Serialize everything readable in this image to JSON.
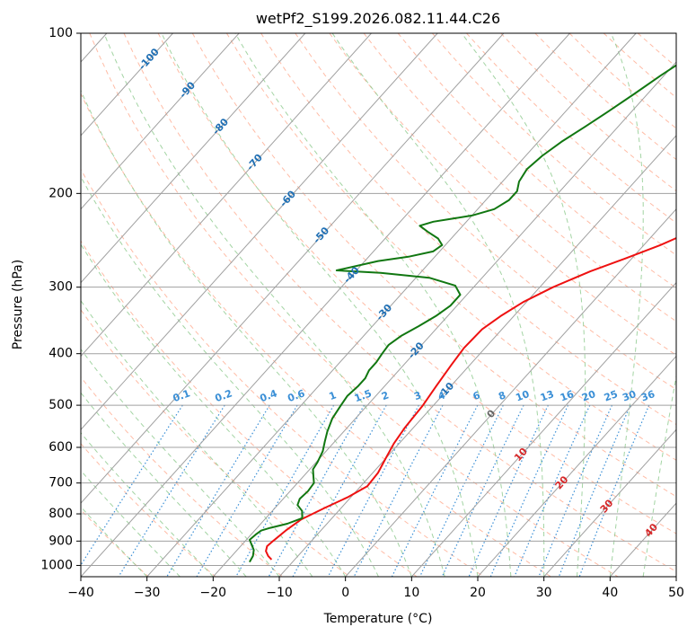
{
  "chart_data": {
    "type": "line",
    "title": "wetPf2_S199.2026.082.11.44.C26",
    "xlabel": "Temperature (°C)",
    "ylabel": "Pressure (hPa)",
    "xlim": [
      -40,
      50
    ],
    "ylim_hpa": [
      1050,
      100
    ],
    "y_scale": "log",
    "x_ticks": [
      -40,
      -30,
      -20,
      -10,
      0,
      10,
      20,
      30,
      40,
      50
    ],
    "x_tick_labels": [
      "−40",
      "−30",
      "−20",
      "−10",
      "0",
      "10",
      "20",
      "30",
      "40",
      "50"
    ],
    "y_ticks": [
      1000,
      900,
      800,
      700,
      600,
      500,
      400,
      300,
      200,
      100
    ],
    "y_tick_labels": [
      "1000",
      "900",
      "800",
      "700",
      "600",
      "500",
      "400",
      "300",
      "200",
      "100"
    ],
    "grid": true,
    "skew_note": "skewed temperature isotherms",
    "isotherm_labels": [
      {
        "t": -100,
        "label": "-100"
      },
      {
        "t": -90,
        "label": "-90"
      },
      {
        "t": -80,
        "label": "-80"
      },
      {
        "t": -70,
        "label": "-70"
      },
      {
        "t": -60,
        "label": "-60"
      },
      {
        "t": -50,
        "label": "-50"
      },
      {
        "t": -40,
        "label": "-40"
      },
      {
        "t": -30,
        "label": "-30"
      },
      {
        "t": -20,
        "label": "-20"
      },
      {
        "t": -10,
        "label": "-10"
      },
      {
        "t": 0,
        "label": "0"
      },
      {
        "t": 10,
        "label": "10"
      },
      {
        "t": 20,
        "label": "20"
      },
      {
        "t": 30,
        "label": "30"
      },
      {
        "t": 40,
        "label": "40"
      }
    ],
    "mixing_ratio_labels": [
      "0.1",
      "0.2",
      "0.4",
      "0.6",
      "1",
      "1.5",
      "2",
      "3",
      "4",
      "6",
      "8",
      "10",
      "13",
      "16",
      "20",
      "25",
      "30",
      "36"
    ],
    "mixing_ratios_gkg": [
      0.1,
      0.2,
      0.4,
      0.6,
      1,
      1.5,
      2,
      3,
      4,
      6,
      8,
      10,
      13,
      16,
      20,
      25,
      30,
      36
    ],
    "colors": {
      "temperature": "#ee1111",
      "dewpoint": "#117711",
      "isotherm_label_cold": "#1f6fb4",
      "isotherm_label_warm": "#d62728",
      "isotherm_label_zero": "#666666",
      "mixing_ratio": "#3a8fd6",
      "dry_adiabat": "#ff9f80",
      "moist_adiabat": "#8cc98c",
      "grid": "#a0a0a0"
    },
    "series": [
      {
        "name": "",
        "role": "temperature",
        "points": [
          [
            -13.5,
            975
          ],
          [
            -14.5,
            960
          ],
          [
            -15.5,
            940
          ],
          [
            -16.0,
            920
          ],
          [
            -15.8,
            900
          ],
          [
            -15.3,
            860
          ],
          [
            -14.5,
            820
          ],
          [
            -12.5,
            780
          ],
          [
            -10.5,
            745
          ],
          [
            -9.0,
            710
          ],
          [
            -9.2,
            670
          ],
          [
            -10.0,
            630
          ],
          [
            -10.8,
            590
          ],
          [
            -11.3,
            550
          ],
          [
            -11.6,
            500
          ],
          [
            -12.2,
            460
          ],
          [
            -12.8,
            420
          ],
          [
            -13.2,
            390
          ],
          [
            -13.0,
            360
          ],
          [
            -12.0,
            340
          ],
          [
            -10.5,
            320
          ],
          [
            -8.0,
            300
          ],
          [
            -4.5,
            280
          ],
          [
            -1.0,
            265
          ],
          [
            2.5,
            250
          ],
          [
            5.5,
            235
          ],
          [
            8.0,
            220
          ],
          [
            10.0,
            205
          ],
          [
            11.5,
            195
          ],
          [
            13.5,
            180
          ],
          [
            15.5,
            165
          ],
          [
            17.5,
            150
          ],
          [
            19.5,
            140
          ],
          [
            22.0,
            130
          ],
          [
            23.5,
            122
          ],
          [
            25.0,
            114
          ],
          [
            26.5,
            107
          ],
          [
            28.0,
            100
          ]
        ]
      },
      {
        "name": "",
        "role": "dewpoint",
        "points": [
          [
            -16.5,
            985
          ],
          [
            -16.8,
            960
          ],
          [
            -17.5,
            935
          ],
          [
            -18.5,
            915
          ],
          [
            -19.5,
            895
          ],
          [
            -19.3,
            875
          ],
          [
            -19.0,
            860
          ],
          [
            -18.0,
            850
          ],
          [
            -16.0,
            835
          ],
          [
            -14.5,
            815
          ],
          [
            -15.5,
            790
          ],
          [
            -17.0,
            770
          ],
          [
            -17.5,
            750
          ],
          [
            -17.3,
            725
          ],
          [
            -17.5,
            700
          ],
          [
            -18.5,
            680
          ],
          [
            -19.5,
            660
          ],
          [
            -19.8,
            640
          ],
          [
            -20.5,
            610
          ],
          [
            -21.5,
            585
          ],
          [
            -22.5,
            560
          ],
          [
            -23.5,
            530
          ],
          [
            -24.0,
            500
          ],
          [
            -24.3,
            480
          ],
          [
            -24.0,
            460
          ],
          [
            -24.0,
            445
          ],
          [
            -24.5,
            430
          ],
          [
            -24.5,
            415
          ],
          [
            -24.8,
            400
          ],
          [
            -25.0,
            385
          ],
          [
            -24.3,
            370
          ],
          [
            -23.0,
            355
          ],
          [
            -21.8,
            340
          ],
          [
            -21.0,
            325
          ],
          [
            -21.0,
            310
          ],
          [
            -23.0,
            298
          ],
          [
            -28.0,
            288
          ],
          [
            -36.0,
            282
          ],
          [
            -43.0,
            279
          ],
          [
            -38.0,
            268
          ],
          [
            -34.0,
            263
          ],
          [
            -31.0,
            257
          ],
          [
            -30.5,
            250
          ],
          [
            -32.0,
            243
          ],
          [
            -34.5,
            236
          ],
          [
            -36.5,
            230
          ],
          [
            -35.0,
            226
          ],
          [
            -30.0,
            220
          ],
          [
            -27.5,
            214
          ],
          [
            -26.5,
            206
          ],
          [
            -26.5,
            198
          ],
          [
            -27.5,
            190
          ],
          [
            -28.0,
            180
          ],
          [
            -27.5,
            170
          ],
          [
            -26.5,
            160
          ],
          [
            -25.0,
            150
          ],
          [
            -23.5,
            140
          ],
          [
            -22.0,
            130
          ],
          [
            -20.5,
            120
          ],
          [
            -19.0,
            112
          ],
          [
            -17.5,
            105
          ],
          [
            -16.5,
            100
          ]
        ]
      }
    ]
  }
}
